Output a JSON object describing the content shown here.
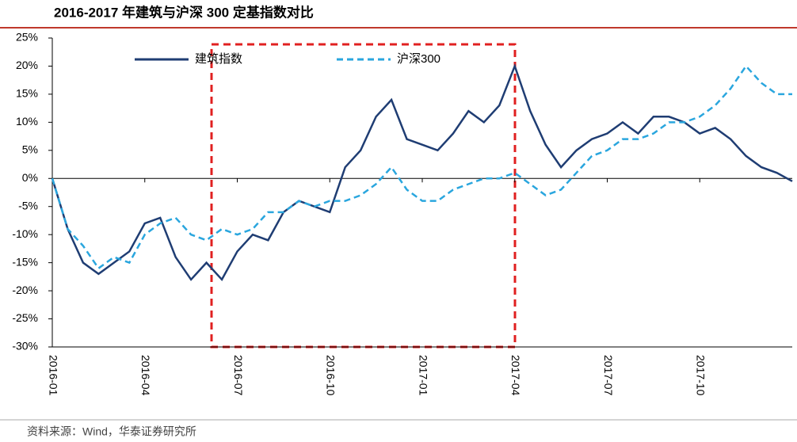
{
  "chart_data": {
    "type": "line",
    "title": "2016-2017 年建筑与沪深 300 定基指数对比",
    "source": "资料来源：Wind，华泰证券研究所",
    "x": [
      0,
      0.5,
      1,
      1.5,
      2,
      2.5,
      3,
      3.5,
      4,
      4.5,
      5,
      5.5,
      6,
      6.5,
      7,
      7.5,
      8,
      8.5,
      9,
      9.5,
      10,
      10.5,
      11,
      11.5,
      12,
      12.5,
      13,
      13.5,
      14,
      14.5,
      15,
      15.5,
      16,
      16.5,
      17,
      17.5,
      18,
      18.5,
      19,
      19.5,
      20,
      20.5,
      21,
      21.5,
      22,
      22.5,
      23,
      23.5,
      24
    ],
    "series": [
      {
        "name": "建筑指数",
        "color": "#1f3d73",
        "dash": false,
        "values": [
          0,
          -9,
          -15,
          -17,
          -15,
          -13,
          -8,
          -7,
          -14,
          -18,
          -15,
          -18,
          -13,
          -10,
          -11,
          -6,
          -4,
          -5,
          -6,
          2,
          5,
          11,
          14,
          7,
          6,
          5,
          8,
          12,
          10,
          13,
          20,
          12,
          6,
          2,
          5,
          7,
          8,
          10,
          8,
          11,
          11,
          10,
          8,
          9,
          7,
          4,
          2,
          1,
          -0.5
        ]
      },
      {
        "name": "沪深300",
        "color": "#2aa6de",
        "dash": true,
        "values": [
          0,
          -9,
          -12,
          -16,
          -14,
          -15,
          -10,
          -8,
          -7,
          -10,
          -11,
          -9,
          -10,
          -9,
          -6,
          -6,
          -4,
          -5,
          -4,
          -4,
          -3,
          -1,
          2,
          -2,
          -4,
          -4,
          -2,
          -1,
          0,
          0,
          1,
          -1,
          -3,
          -2,
          1,
          4,
          5,
          7,
          7,
          8,
          10,
          10,
          11,
          13,
          16,
          20,
          17,
          15,
          15
        ]
      }
    ],
    "xlim": [
      0,
      24
    ],
    "xticks": [
      {
        "value": 0,
        "label": "2016-01"
      },
      {
        "value": 3,
        "label": "2016-04"
      },
      {
        "value": 6,
        "label": "2016-07"
      },
      {
        "value": 9,
        "label": "2016-10"
      },
      {
        "value": 12,
        "label": "2017-01"
      },
      {
        "value": 15,
        "label": "2017-04"
      },
      {
        "value": 18,
        "label": "2017-07"
      },
      {
        "value": 21,
        "label": "2017-10"
      }
    ],
    "ylim": [
      -30,
      25
    ],
    "yticks": [
      {
        "value": -30,
        "label": "-30%"
      },
      {
        "value": -25,
        "label": "-25%"
      },
      {
        "value": -20,
        "label": "-20%"
      },
      {
        "value": -15,
        "label": "-15%"
      },
      {
        "value": -10,
        "label": "-10%"
      },
      {
        "value": -5,
        "label": "-5%"
      },
      {
        "value": 0,
        "label": "0%"
      },
      {
        "value": 5,
        "label": "5%"
      },
      {
        "value": 10,
        "label": "10%"
      },
      {
        "value": 15,
        "label": "15%"
      },
      {
        "value": 20,
        "label": "20%"
      },
      {
        "value": 25,
        "label": "25%"
      }
    ]
  }
}
